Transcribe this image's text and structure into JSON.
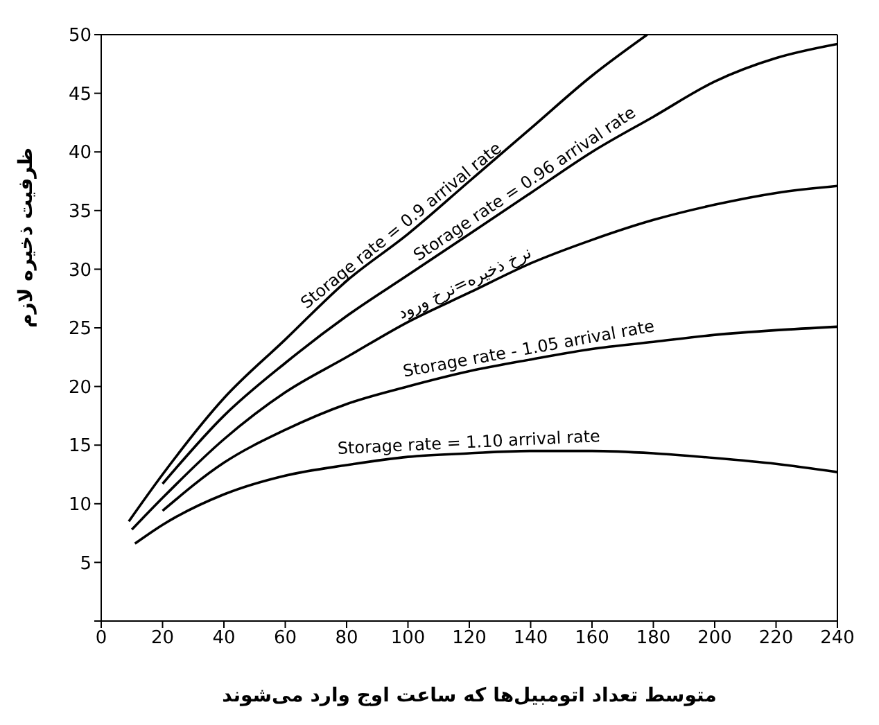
{
  "chart_data": {
    "type": "line",
    "xlabel": "متوسط تعداد اتومبیل‌ها که ساعت اوج وارد می‌شوند",
    "ylabel": "ظرفیت ذخیره لازم",
    "xlim": [
      0,
      240
    ],
    "xticks": [
      0,
      20,
      40,
      60,
      80,
      100,
      120,
      140,
      160,
      180,
      200,
      220,
      240
    ],
    "ylim": [
      0,
      50
    ],
    "yticks": [
      {
        "value": 0,
        "label": null
      },
      5,
      10,
      15,
      20,
      25,
      30,
      35,
      40,
      45,
      50
    ],
    "marker": "none",
    "line_style": "solid",
    "series": [
      {
        "name": "Storage rate = 0.9 arrival rate",
        "color": "#000000",
        "x": [
          9,
          20,
          40,
          60,
          80,
          100,
          120,
          140,
          160,
          178
        ],
        "values": [
          8.5,
          12.5,
          19,
          24,
          29,
          33,
          37.5,
          42,
          46.5,
          50
        ]
      },
      {
        "name": "Storage rate = 0.96 arrival rate",
        "color": "#000000",
        "x": [
          20,
          40,
          60,
          80,
          100,
          120,
          140,
          160,
          180,
          200,
          220,
          240
        ],
        "values": [
          11.7,
          17.5,
          22,
          26,
          29.5,
          33,
          36.5,
          40,
          43,
          46,
          48,
          49.2
        ]
      },
      {
        "name": "نرخ ذخیره=نرخ ورود",
        "color": "#000000",
        "x": [
          10,
          20,
          40,
          60,
          80,
          100,
          120,
          140,
          160,
          180,
          200,
          220,
          240
        ],
        "values": [
          7.8,
          10.5,
          15.5,
          19.5,
          22.5,
          25.5,
          28,
          30.5,
          32.5,
          34.2,
          35.5,
          36.5,
          37.1
        ]
      },
      {
        "name": "Storage rate - 1.05 arrival rate",
        "color": "#000000",
        "x": [
          20,
          40,
          60,
          80,
          100,
          120,
          140,
          160,
          180,
          200,
          220,
          240
        ],
        "values": [
          9.4,
          13.5,
          16.3,
          18.5,
          20,
          21.3,
          22.3,
          23.2,
          23.8,
          24.4,
          24.8,
          25.1
        ]
      },
      {
        "name": "Storage rate = 1.10 arrival rate",
        "color": "#000000",
        "x": [
          11,
          20,
          40,
          60,
          80,
          100,
          120,
          140,
          160,
          180,
          200,
          220,
          240
        ],
        "values": [
          6.6,
          8.2,
          10.8,
          12.4,
          13.3,
          14,
          14.3,
          14.5,
          14.5,
          14.3,
          13.9,
          13.4,
          12.7
        ]
      }
    ]
  }
}
